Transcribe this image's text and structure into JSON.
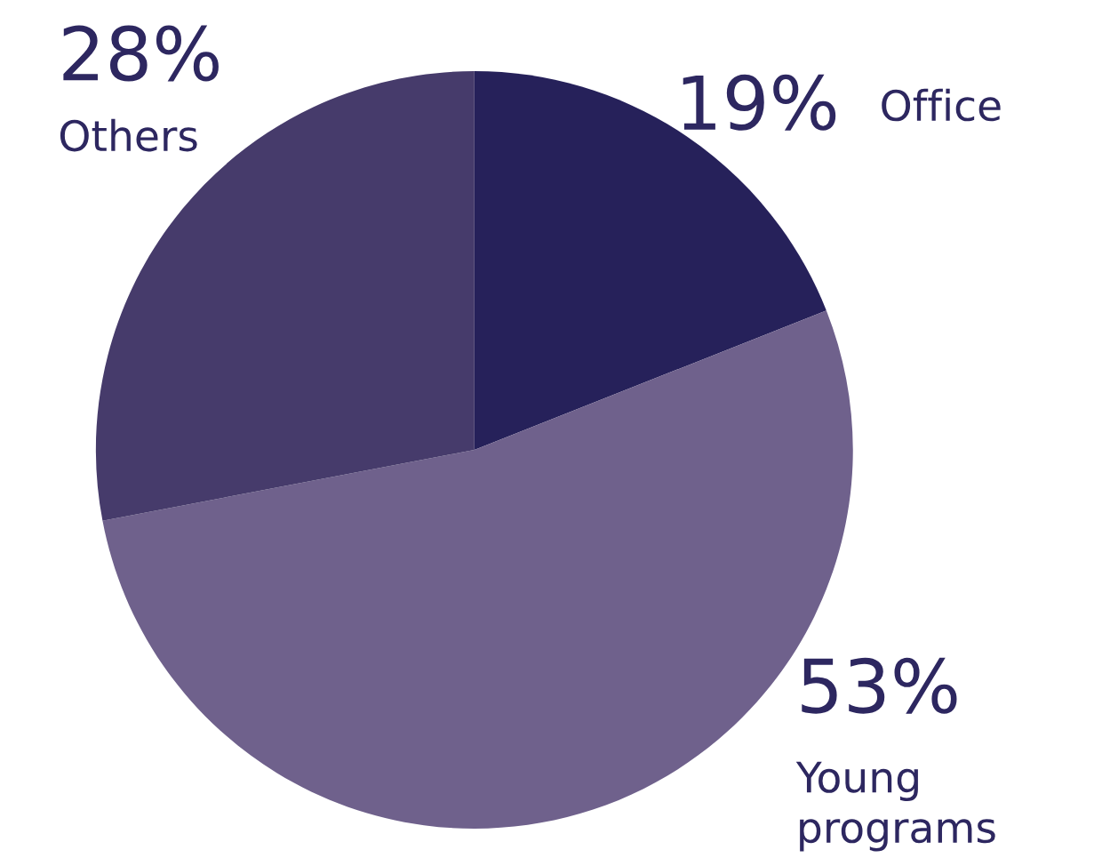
{
  "chart_data": {
    "type": "pie",
    "categories": [
      "Office",
      "Young programs",
      "Others"
    ],
    "values": [
      19,
      53,
      28
    ],
    "value_labels": [
      "19%",
      "53%",
      "28%"
    ],
    "colors": [
      "#26215a",
      "#6f618c",
      "#463b6b"
    ]
  }
}
